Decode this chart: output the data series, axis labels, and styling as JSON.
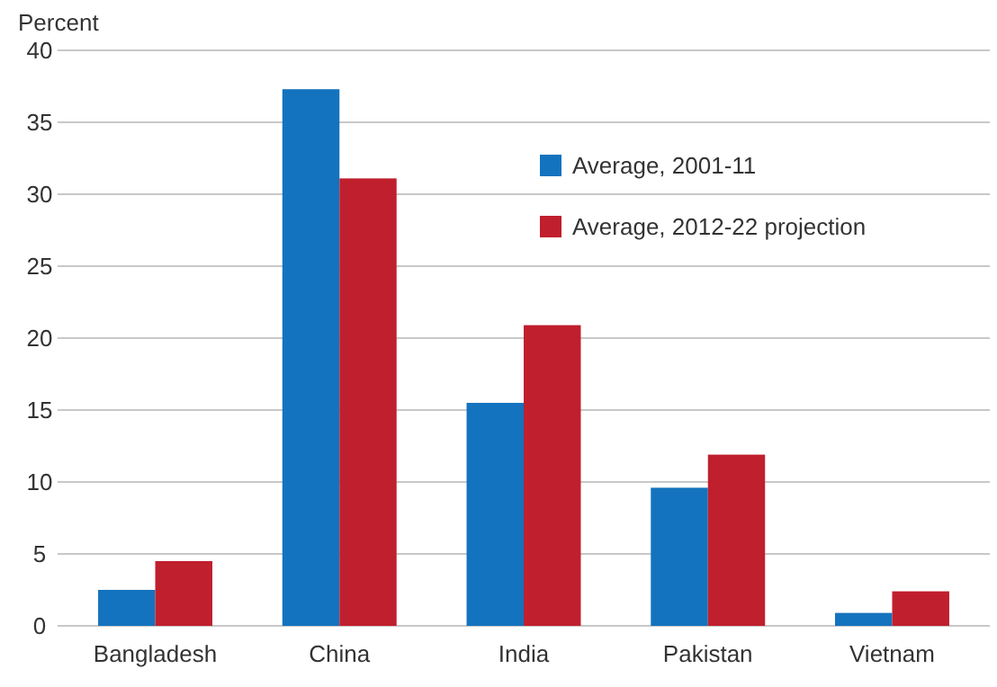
{
  "chart_data": {
    "type": "bar",
    "ylabel": "Percent",
    "categories": [
      "Bangladesh",
      "China",
      "India",
      "Pakistan",
      "Vietnam"
    ],
    "series": [
      {
        "name": "Average, 2001-11",
        "color": "#1473be",
        "values": [
          2.5,
          37.3,
          15.5,
          9.6,
          0.9
        ]
      },
      {
        "name": "Average, 2012-22 projection",
        "color": "#c01f2d",
        "values": [
          4.5,
          31.1,
          20.9,
          11.9,
          2.4
        ]
      }
    ],
    "ylim": [
      0,
      40
    ],
    "yticks": [
      0,
      5,
      10,
      15,
      20,
      25,
      30,
      35,
      40
    ],
    "grid": "y",
    "legend": "top right"
  }
}
